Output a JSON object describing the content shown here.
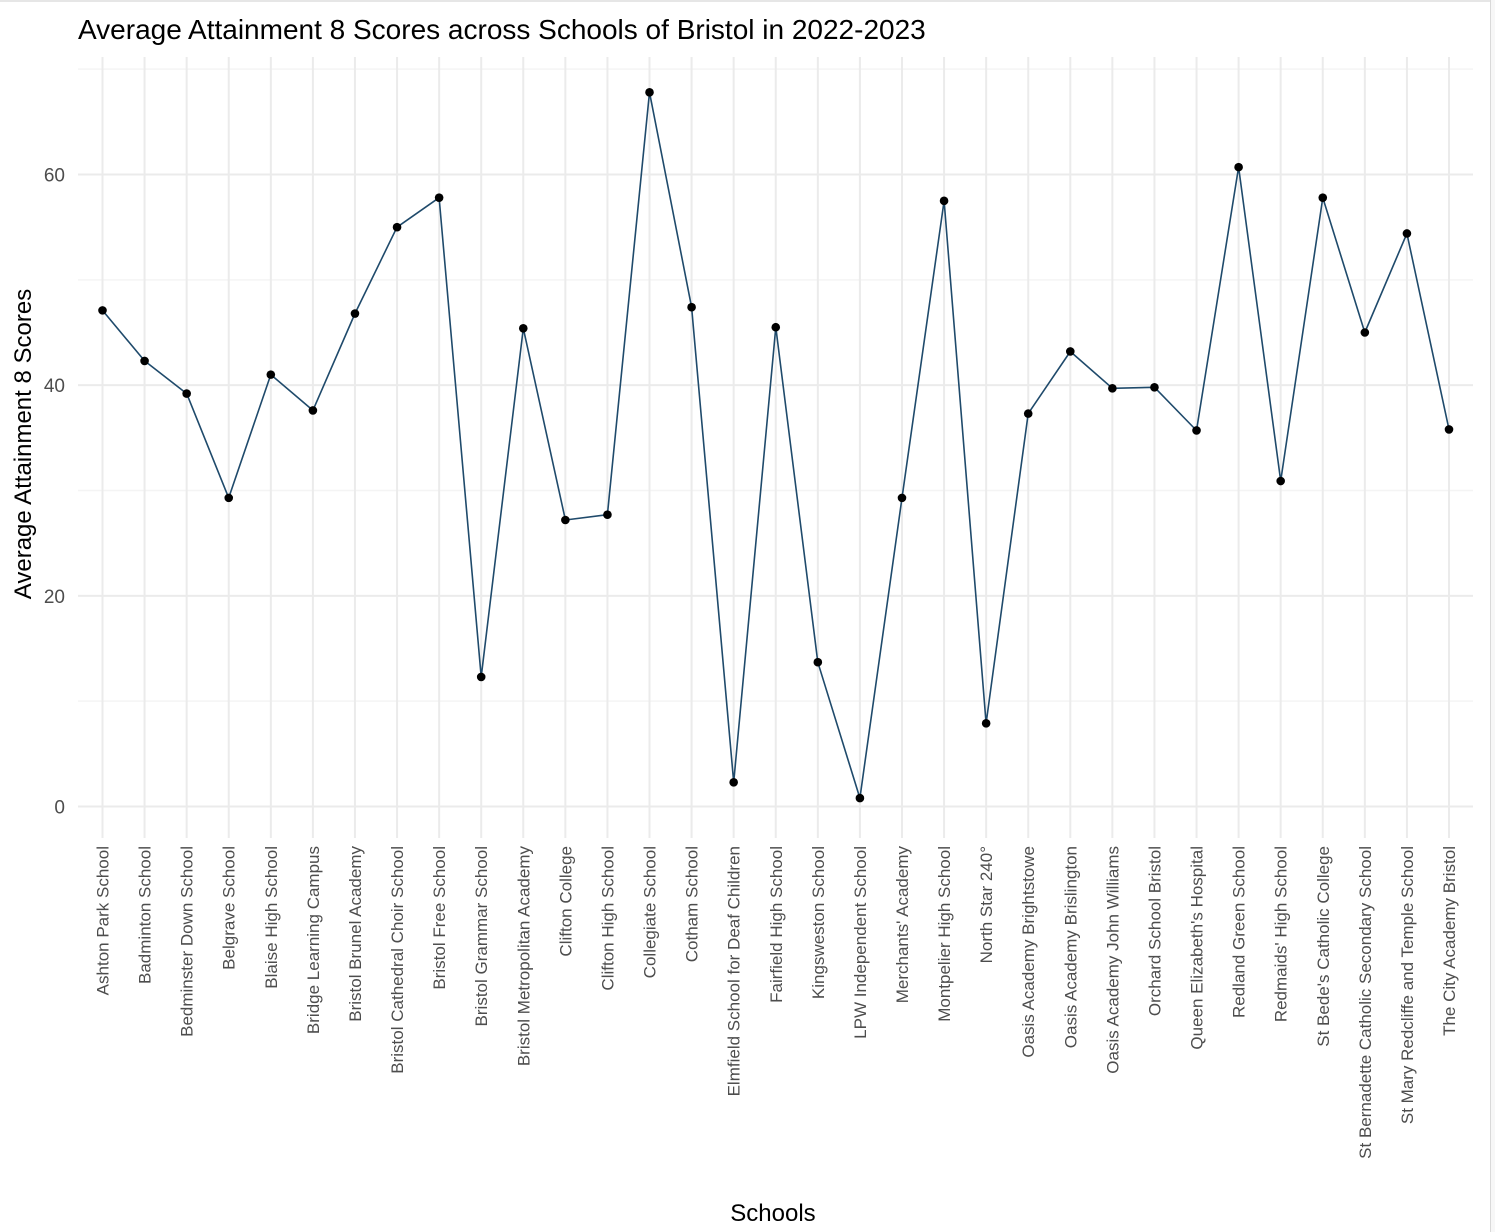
{
  "chart_data": {
    "type": "line",
    "title": "Average Attainment 8 Scores across Schools of Bristol in 2022-2023",
    "xlabel": "Schools",
    "ylabel": "Average Attainment 8 Scores",
    "ylim": [
      -3,
      71
    ],
    "yticks": [
      "0",
      "20",
      "40",
      "60"
    ],
    "ytick_values": [
      0,
      20,
      40,
      60
    ],
    "grid": true,
    "legend": "none",
    "colors": {
      "line": "#1f4a6b",
      "point": "#000000",
      "grid_major": "#ebebeb",
      "grid_minor": "#f4f4f4"
    },
    "categories": [
      "Ashton Park School",
      "Badminton School",
      "Bedminster Down School",
      "Belgrave School",
      "Blaise High School",
      "Bridge Learning Campus",
      "Bristol Brunel Academy",
      "Bristol Cathedral Choir School",
      "Bristol Free School",
      "Bristol Grammar School",
      "Bristol Metropolitan Academy",
      "Clifton College",
      "Clifton High School",
      "Collegiate School",
      "Cotham School",
      "Elmfield School for Deaf Children",
      "Fairfield High School",
      "Kingsweston School",
      "LPW Independent School",
      "Merchants' Academy",
      "Montpelier High School",
      "North Star 240°",
      "Oasis Academy Brightstowe",
      "Oasis Academy Brislington",
      "Oasis Academy John Williams",
      "Orchard School Bristol",
      "Queen Elizabeth's Hospital",
      "Redland Green School",
      "Redmaids' High School",
      "St Bede's Catholic College",
      "St Bernadette Catholic Secondary School",
      "St Mary Redcliffe and Temple School",
      "The City Academy Bristol"
    ],
    "values": [
      47.1,
      42.3,
      39.2,
      29.3,
      41.0,
      37.6,
      46.8,
      55.0,
      57.8,
      12.3,
      45.4,
      27.2,
      27.7,
      67.8,
      47.4,
      2.3,
      45.5,
      13.7,
      0.8,
      29.3,
      57.5,
      7.9,
      37.3,
      43.2,
      39.7,
      39.8,
      35.7,
      60.7,
      30.9,
      57.8,
      45.0,
      54.4,
      35.8
    ]
  }
}
